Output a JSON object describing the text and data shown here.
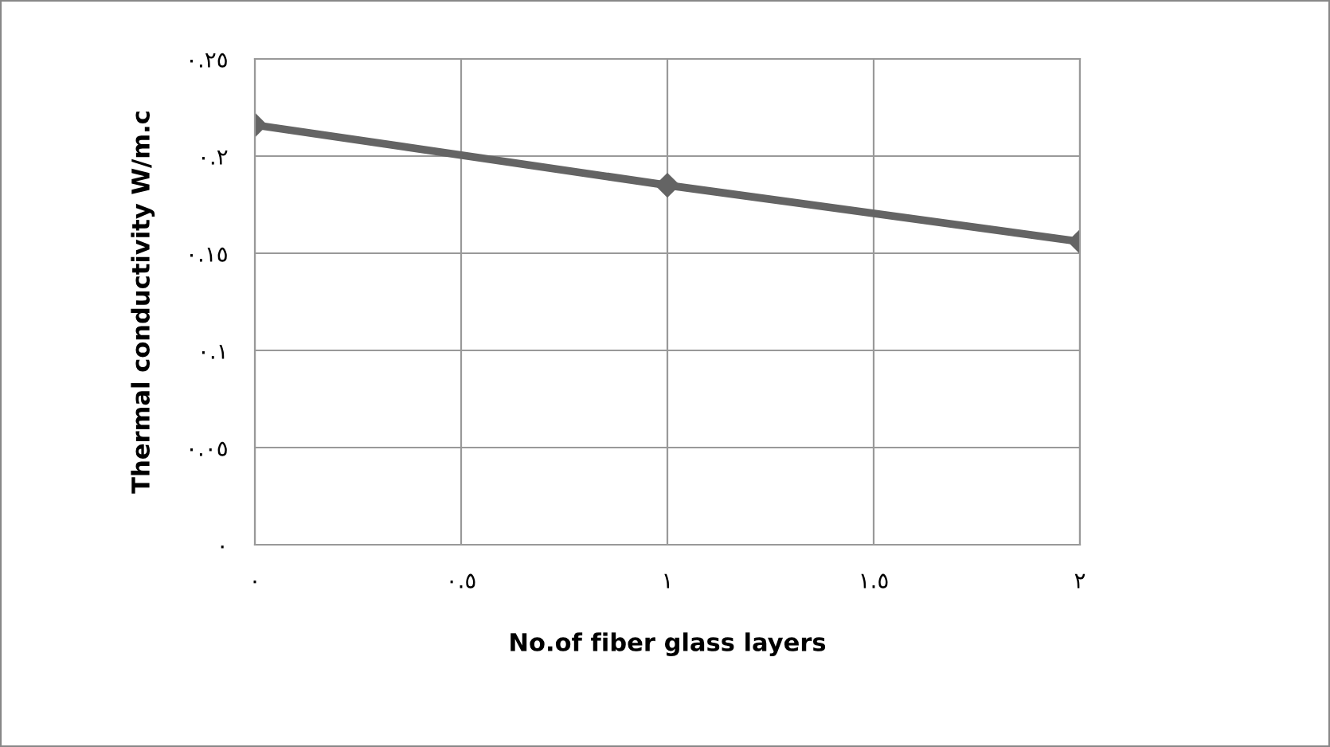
{
  "chart_data": {
    "type": "line",
    "xlabel": "No.of fiber glass layers",
    "ylabel": "Thermal conductivity W/m.c",
    "x": [
      0,
      1,
      2
    ],
    "series": [
      {
        "color": "#646464",
        "values": [
          0.216,
          0.185,
          0.156
        ]
      }
    ],
    "xlim": [
      0,
      2
    ],
    "ylim": [
      0,
      0.25
    ],
    "xticks": [
      {
        "value": 0,
        "label": "٠"
      },
      {
        "value": 0.5,
        "label": "٠.٥"
      },
      {
        "value": 1,
        "label": "١"
      },
      {
        "value": 1.5,
        "label": "١.٥"
      },
      {
        "value": 2,
        "label": "٢"
      }
    ],
    "yticks": [
      {
        "value": 0,
        "label": "٠"
      },
      {
        "value": 0.05,
        "label": "٠.٠٥"
      },
      {
        "value": 0.1,
        "label": "٠.١"
      },
      {
        "value": 0.15,
        "label": "٠.١٥"
      },
      {
        "value": 0.2,
        "label": "٠.٢"
      },
      {
        "value": 0.25,
        "label": "٠.٢٥"
      }
    ],
    "grid": true,
    "marker": "diamond",
    "line_style": "solid",
    "legend": false
  }
}
